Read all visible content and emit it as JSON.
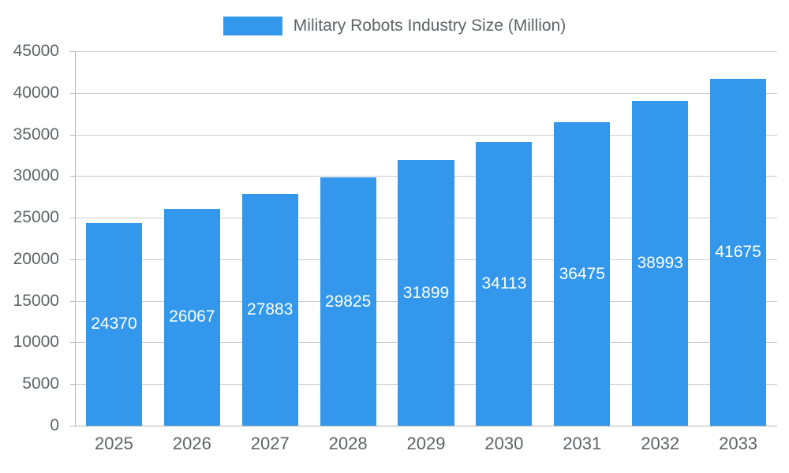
{
  "chart_data": {
    "type": "bar",
    "title": "Military Robots Industry Size (Million)",
    "categories": [
      "2025",
      "2026",
      "2027",
      "2028",
      "2029",
      "2030",
      "2031",
      "2032",
      "2033"
    ],
    "values": [
      24370,
      26067,
      27883,
      29825,
      31899,
      34113,
      36475,
      38993,
      41675
    ],
    "xlabel": "",
    "ylabel": "",
    "ylim": [
      0,
      45000
    ],
    "ytick_step": 5000,
    "grid": "horizontal",
    "legend_position": "top",
    "value_labels": "inside-center"
  },
  "colors": {
    "bar": "#3398EC",
    "bar_label_text": "#ffffff",
    "axis_text": "#5f6368",
    "gridline": "#cccccc",
    "axis_line": "#b7b7b7"
  },
  "legend": {
    "label": "Military Robots Industry Size (Million)"
  }
}
